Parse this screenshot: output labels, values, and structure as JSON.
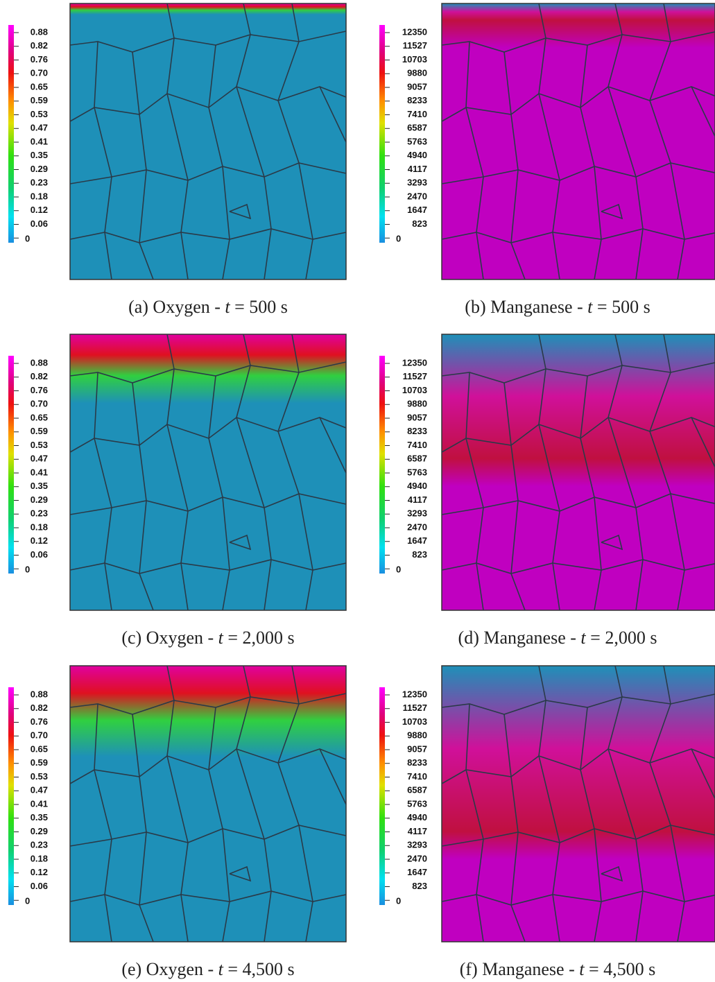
{
  "panels": [
    {
      "caption": {
        "prefix": "(a) Oxygen - ",
        "variable": "t",
        "value": " = 500 s"
      },
      "colorbar": [
        "0.88",
        "0.82",
        "0.76",
        "0.70",
        "0.65",
        "0.59",
        "0.53",
        "0.47",
        "0.41",
        "0.35",
        "0.29",
        "0.23",
        "0.18",
        "0.12",
        "0.06",
        "0"
      ]
    },
    {
      "caption": {
        "prefix": "(b) Manganese - ",
        "variable": "t",
        "value": " = 500 s"
      },
      "colorbar": [
        "12350",
        "11527",
        "10703",
        "9880",
        "9057",
        "8233",
        "7410",
        "6587",
        "5763",
        "4940",
        "4117",
        "3293",
        "2470",
        "1647",
        "823",
        "0"
      ]
    },
    {
      "caption": {
        "prefix": "(c) Oxygen - ",
        "variable": "t",
        "value": " = 2,000 s"
      },
      "colorbar": [
        "0.88",
        "0.82",
        "0.76",
        "0.70",
        "0.65",
        "0.59",
        "0.53",
        "0.47",
        "0.41",
        "0.35",
        "0.29",
        "0.23",
        "0.18",
        "0.12",
        "0.06",
        "0"
      ]
    },
    {
      "caption": {
        "prefix": "(d) Manganese - ",
        "variable": "t",
        "value": " = 2,000 s"
      },
      "colorbar": [
        "12350",
        "11527",
        "10703",
        "9880",
        "9057",
        "8233",
        "7410",
        "6587",
        "5763",
        "4940",
        "4117",
        "3293",
        "2470",
        "1647",
        "823",
        "0"
      ]
    },
    {
      "caption": {
        "prefix": "(e) Oxygen - ",
        "variable": "t",
        "value": " = 4,500 s"
      },
      "colorbar": [
        "0.88",
        "0.82",
        "0.76",
        "0.70",
        "0.65",
        "0.59",
        "0.53",
        "0.47",
        "0.41",
        "0.35",
        "0.29",
        "0.23",
        "0.18",
        "0.12",
        "0.06",
        "0"
      ]
    },
    {
      "caption": {
        "prefix": "(f) Manganese - ",
        "variable": "t",
        "value": " = 4,500 s"
      },
      "colorbar": [
        "12350",
        "11527",
        "10703",
        "9880",
        "9057",
        "8233",
        "7410",
        "6587",
        "5763",
        "4940",
        "4117",
        "3293",
        "2470",
        "1647",
        "823",
        "0"
      ]
    }
  ]
}
